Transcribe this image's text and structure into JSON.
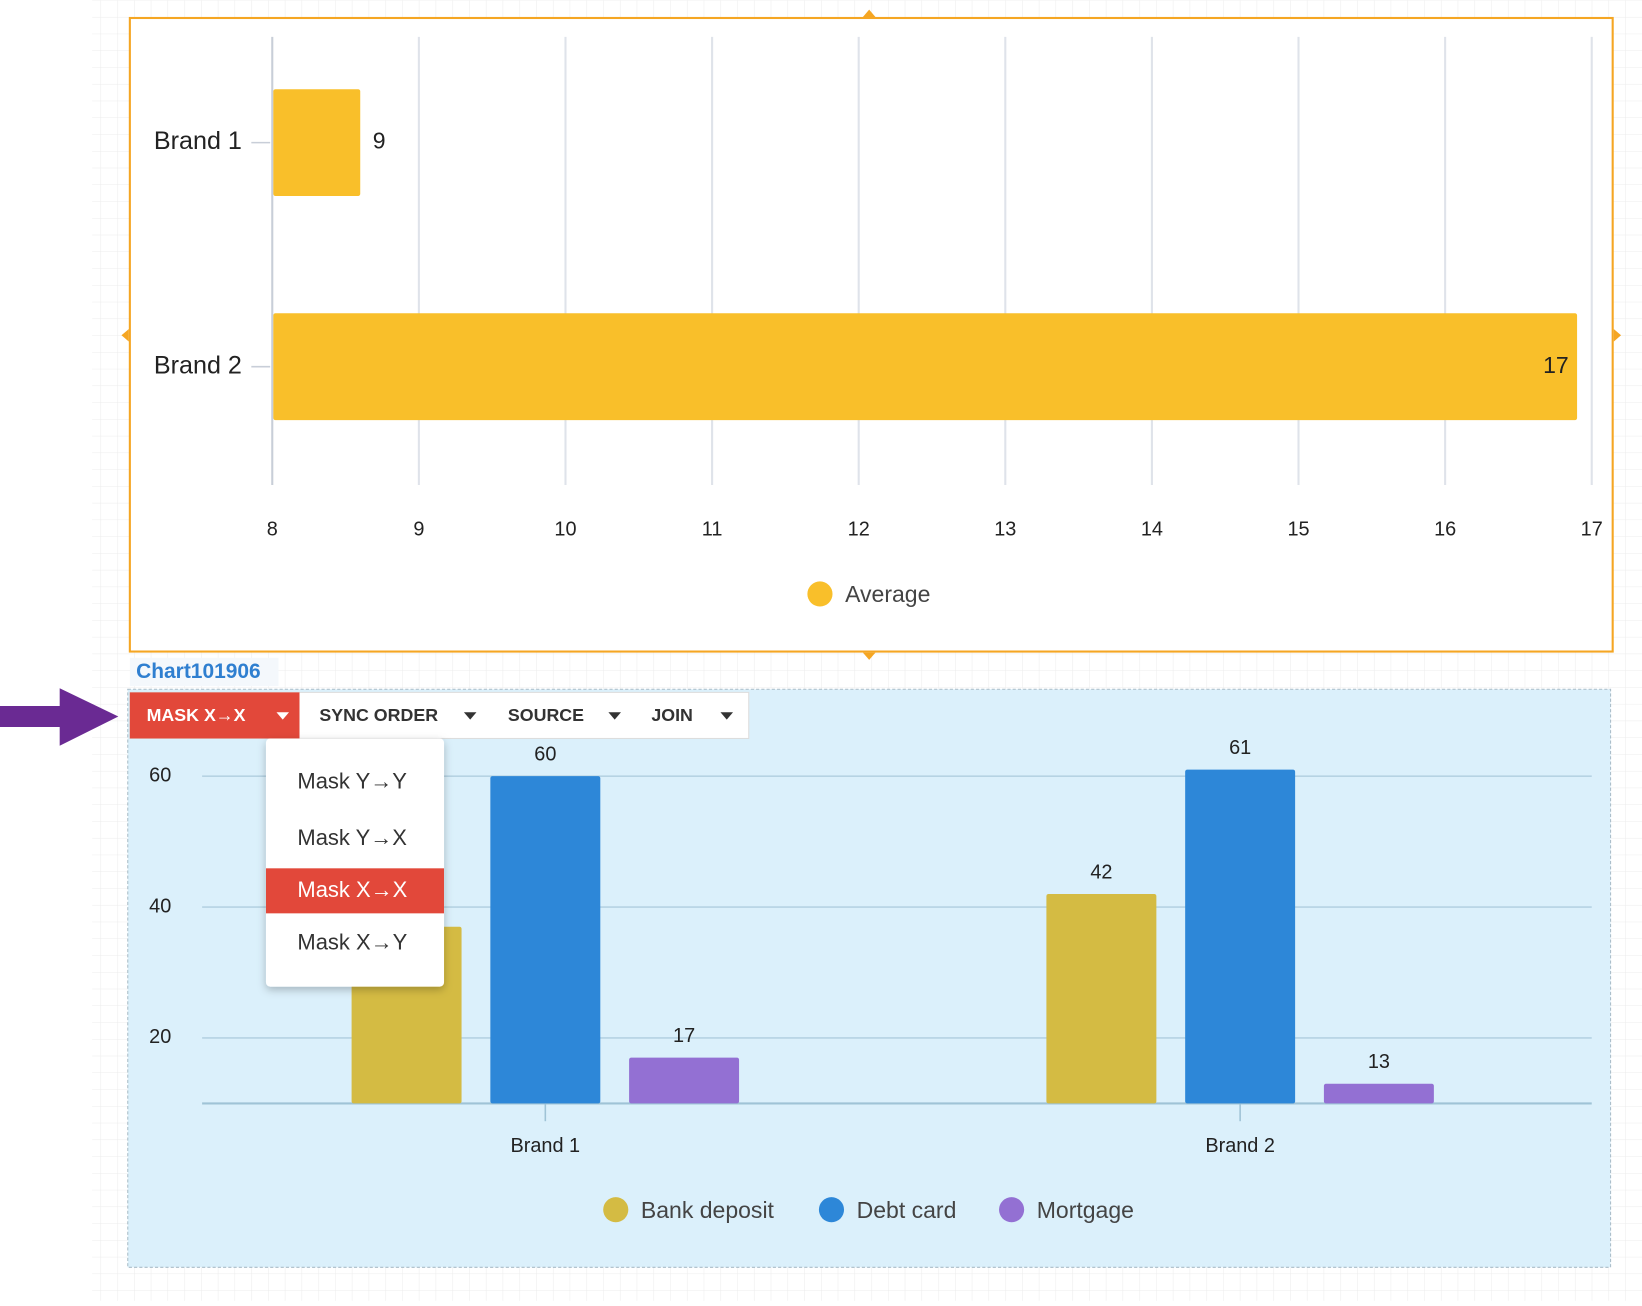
{
  "chart_data": [
    {
      "type": "barh",
      "categories": [
        "Brand 1",
        "Brand 2"
      ],
      "series": [
        {
          "name": "Average",
          "color": "#f9bf2a",
          "values": [
            8.6,
            16.9
          ],
          "value_labels": [
            "9",
            "17"
          ]
        }
      ],
      "xlim": [
        8,
        17
      ],
      "xticks": [
        8,
        9,
        10,
        11,
        12,
        13,
        14,
        15,
        16,
        17
      ],
      "grid": true
    },
    {
      "type": "bar",
      "categories": [
        "Brand 1",
        "Brand 2"
      ],
      "series": [
        {
          "name": "Bank deposit",
          "color": "#d4bb43",
          "values": [
            37,
            42
          ]
        },
        {
          "name": "Debt card",
          "color": "#2d87d8",
          "values": [
            60,
            61
          ]
        },
        {
          "name": "Mortgage",
          "color": "#9370d3",
          "values": [
            17,
            13
          ]
        }
      ],
      "ylim": [
        10,
        65
      ],
      "yticks": [
        20,
        40,
        60
      ],
      "grid": true
    }
  ],
  "ui": {
    "chart_name": "Chart101906",
    "toolbar": [
      "MASK X→X",
      "SYNC ORDER",
      "SOURCE",
      "JOIN"
    ],
    "menu": [
      "Mask Y→Y",
      "Mask Y→X",
      "Mask X→X",
      "Mask X→Y"
    ]
  }
}
